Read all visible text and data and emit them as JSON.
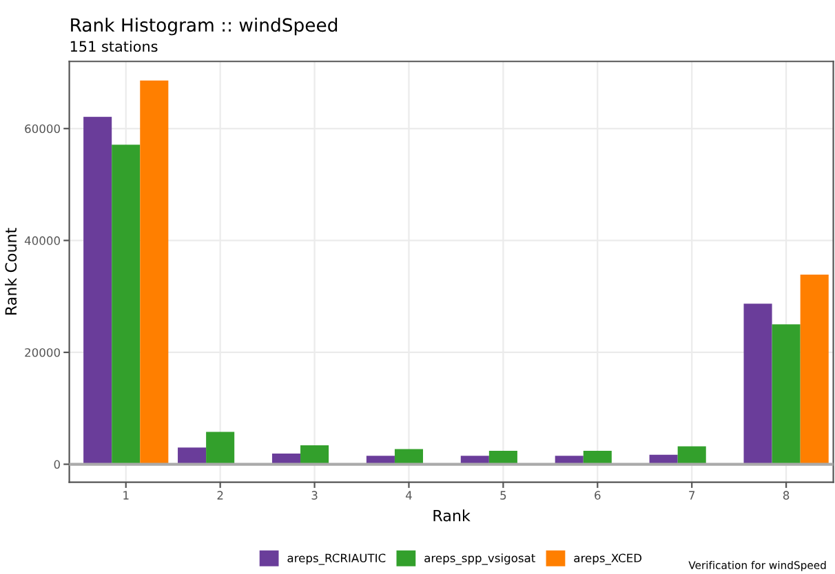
{
  "chart_data": {
    "type": "bar",
    "title": "Rank Histogram :: windSpeed",
    "subtitle": "151 stations",
    "xlabel": "Rank",
    "ylabel": "Rank Count",
    "categories": [
      "1",
      "2",
      "3",
      "4",
      "5",
      "6",
      "7",
      "8"
    ],
    "series": [
      {
        "name": "areps_RCRIAUTIC",
        "color": "#6a3d9a",
        "values": [
          62100,
          3000,
          1900,
          1500,
          1500,
          1500,
          1700,
          28700
        ]
      },
      {
        "name": "areps_spp_vsigosat",
        "color": "#33a02c",
        "values": [
          57100,
          5800,
          3400,
          2700,
          2400,
          2400,
          3200,
          25000
        ]
      },
      {
        "name": "areps_XCED",
        "color": "#ff7f00",
        "values": [
          68600,
          0,
          0,
          0,
          0,
          0,
          0,
          33900
        ]
      }
    ],
    "ylim": [
      -3200,
      72000
    ],
    "yticks": [
      0,
      20000,
      40000,
      60000
    ],
    "grid": true,
    "legend": "bottom",
    "ref_lines": [
      {
        "axis": "y",
        "value": 0,
        "color": "#aaaaaa"
      }
    ],
    "annotations": [
      "Verification for windSpeed"
    ]
  }
}
